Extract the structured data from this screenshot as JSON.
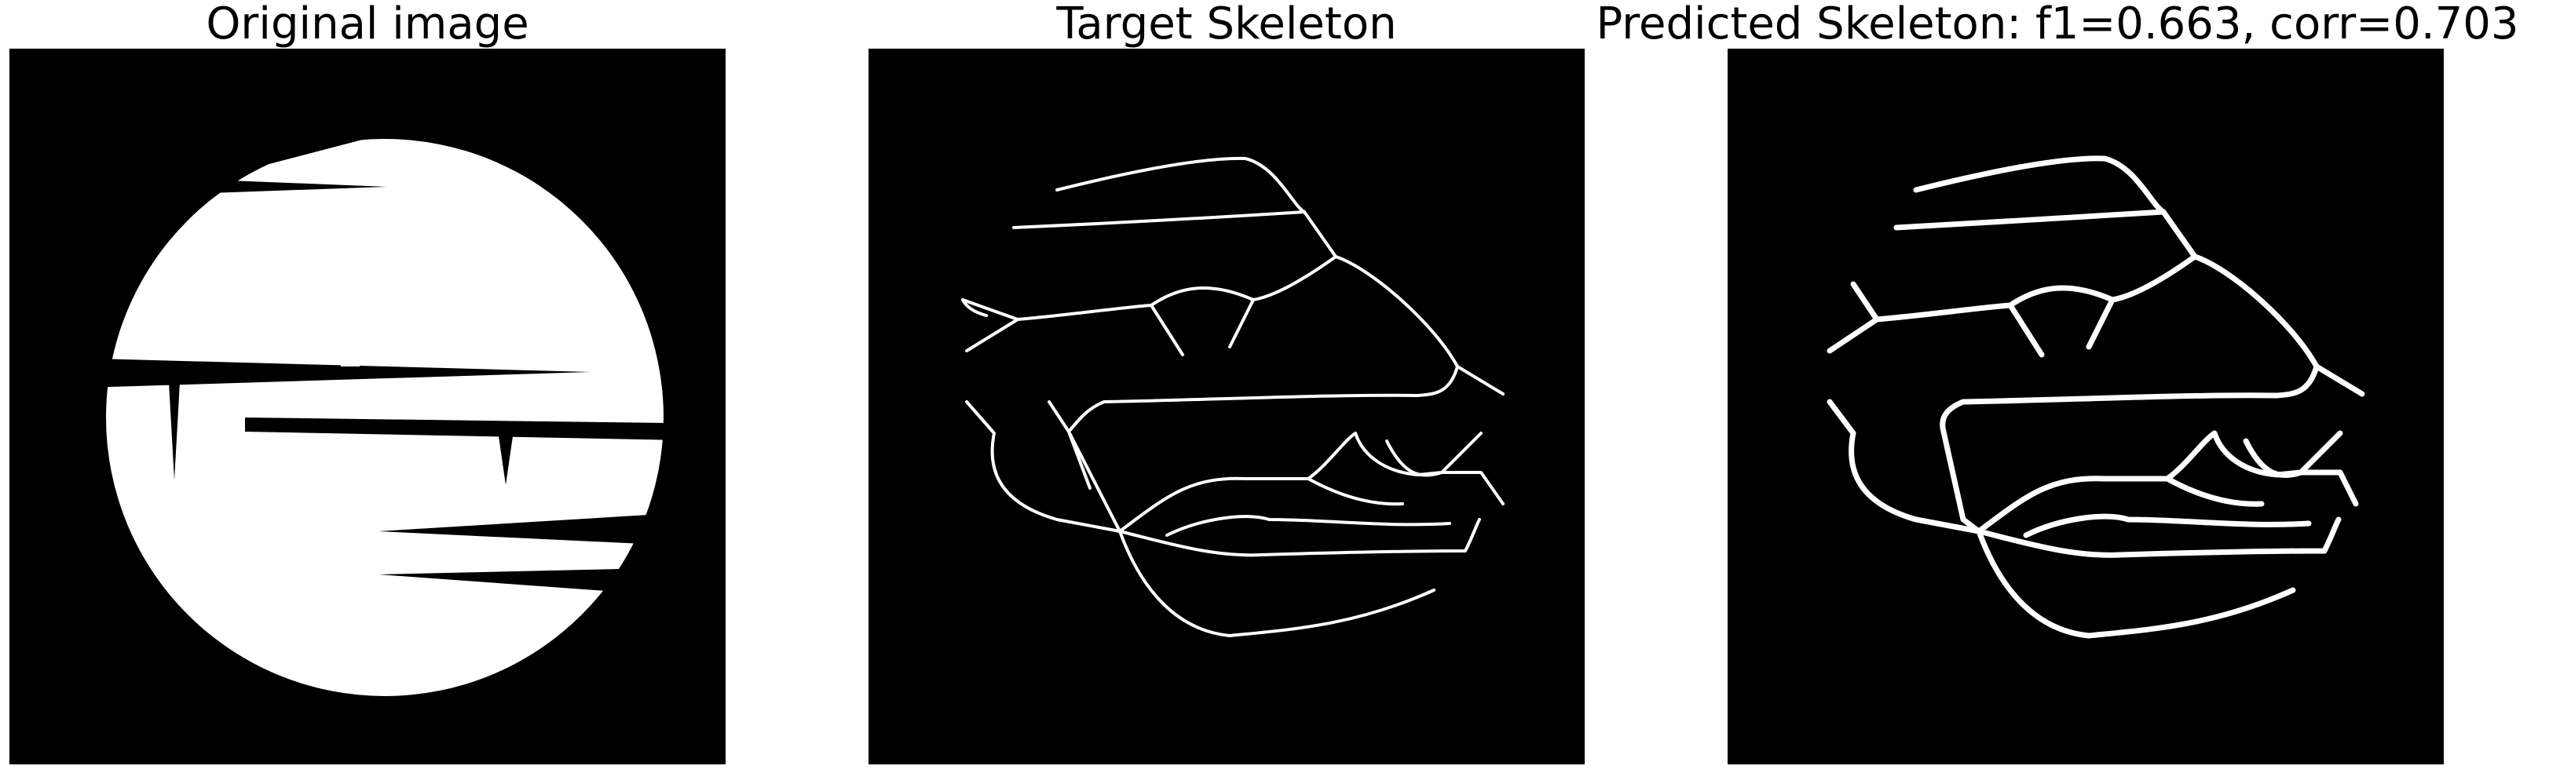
{
  "panels": [
    {
      "title": "Original image"
    },
    {
      "title": "Target Skeleton"
    },
    {
      "title": "Predicted Skeleton: f1=0.663, corr=0.703"
    }
  ],
  "colors": {
    "background": "#000000",
    "foreground": "#ffffff",
    "page": "#ffffff"
  }
}
